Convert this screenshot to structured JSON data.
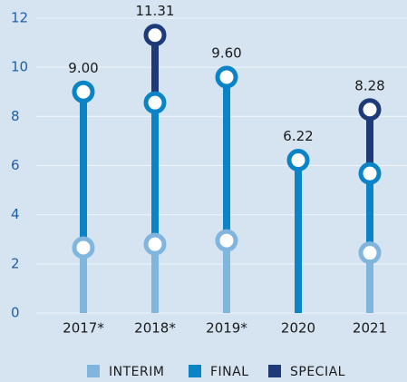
{
  "chart_data": {
    "type": "stacked-lollipop",
    "categories": [
      "2017*",
      "2018*",
      "2019*",
      "2020",
      "2021"
    ],
    "series": [
      {
        "name": "INTERIM",
        "color": "#80b5de",
        "values": [
          2.66,
          2.8,
          2.95,
          null,
          2.45
        ]
      },
      {
        "name": "FINAL",
        "color": "#0a84c6",
        "values": [
          6.34,
          5.76,
          6.65,
          6.22,
          3.23
        ]
      },
      {
        "name": "SPECIAL",
        "color": "#1e3a78",
        "values": [
          null,
          2.75,
          null,
          null,
          2.6
        ]
      }
    ],
    "totals": {
      "values": [
        9.0,
        11.31,
        9.6,
        6.22,
        8.28
      ],
      "value_labels": [
        "9.00",
        "11.31",
        "9.60",
        "6.22",
        "8.28"
      ]
    },
    "ylim": [
      0,
      12
    ],
    "yticks": [
      0,
      2,
      4,
      6,
      8,
      10,
      12
    ],
    "grid": true
  }
}
